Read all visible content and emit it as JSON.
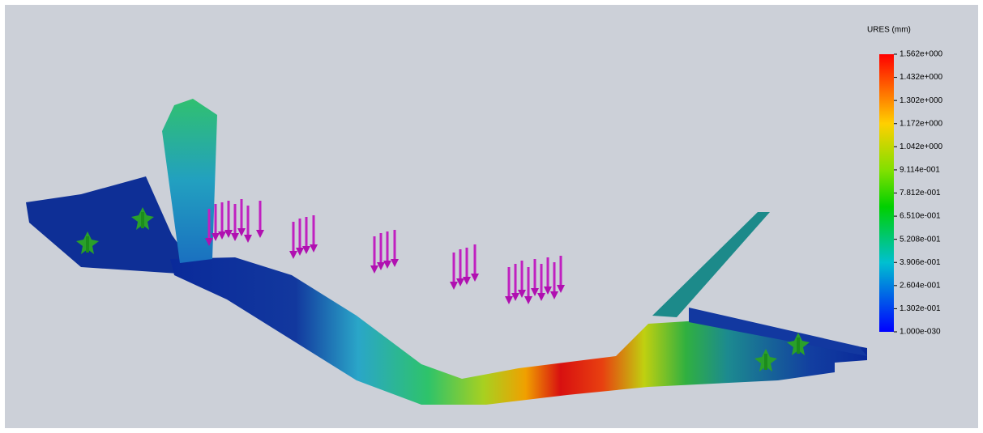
{
  "legend": {
    "title": "URES (mm)",
    "labels": [
      "1.562e+000",
      "1.432e+000",
      "1.302e+000",
      "1.172e+000",
      "1.042e+000",
      "9.114e-001",
      "7.812e-001",
      "6.510e-001",
      "5.208e-001",
      "3.906e-001",
      "2.604e-001",
      "1.302e-001",
      "1.000e-030"
    ]
  }
}
